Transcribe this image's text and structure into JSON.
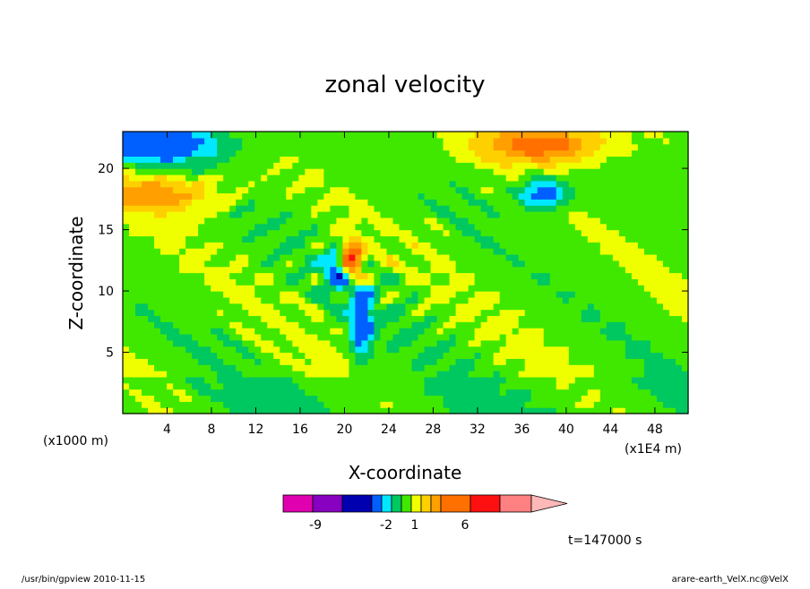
{
  "chart_data": {
    "type": "heatmap",
    "title": "zonal velocity",
    "xlabel": "X-coordinate",
    "ylabel": "Z-coordinate",
    "x_unit": "(x1E4 m)",
    "y_unit": "(x1000 m)",
    "xlim": [
      0,
      51
    ],
    "ylim": [
      0,
      23
    ],
    "x_ticks": [
      4,
      8,
      12,
      16,
      20,
      24,
      28,
      32,
      36,
      40,
      44,
      48
    ],
    "y_ticks": [
      5,
      10,
      15,
      20
    ],
    "grid": false,
    "colorbar": {
      "levels": [
        -9,
        -2,
        1,
        6
      ],
      "tick_labels": [
        "-9",
        "-2",
        "1",
        "6"
      ],
      "colors": [
        "#e000b0",
        "#8800c0",
        "#0000b0",
        "#0060ff",
        "#00e8ff",
        "#00c860",
        "#40e800",
        "#f0ff00",
        "#ffd000",
        "#ffa000",
        "#ff7000",
        "#ff1010",
        "#ff8080",
        "#ffb8b8"
      ]
    },
    "features": [
      {
        "x": 20.5,
        "z": 12.5,
        "type": "dipole",
        "sign": "positive",
        "amplitude": 7
      },
      {
        "x": 19.5,
        "z": 11.8,
        "type": "dipole",
        "sign": "negative",
        "amplitude": -5
      },
      {
        "x": 21.5,
        "z": 7.5,
        "type": "jet",
        "sign": "negative",
        "amplitude": -4
      },
      {
        "x": 3,
        "z": 22,
        "type": "band",
        "sign": "negative",
        "amplitude": -4
      },
      {
        "x": 38,
        "z": 22,
        "type": "band",
        "sign": "positive",
        "amplitude": 4
      },
      {
        "x": 38,
        "z": 18,
        "type": "blob",
        "sign": "negative",
        "amplitude": -4
      },
      {
        "x": 3,
        "z": 18,
        "type": "band",
        "sign": "positive",
        "amplitude": 3
      }
    ],
    "annotation": "t=147000 s"
  },
  "footer": {
    "left": "/usr/bin/gpview   2010-11-15",
    "right": "arare-earth_VelX.nc@VelX"
  }
}
